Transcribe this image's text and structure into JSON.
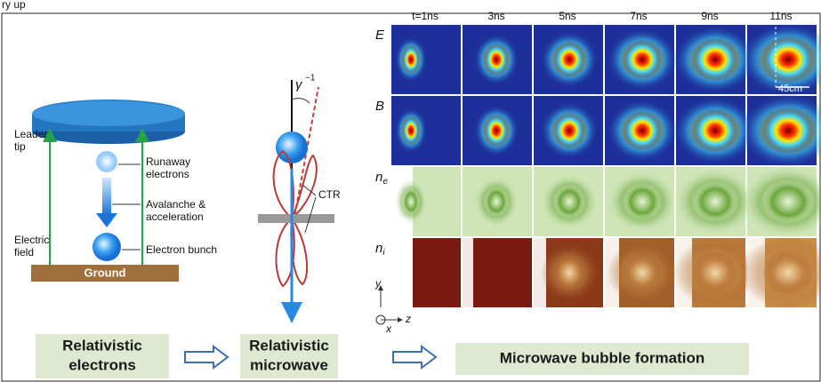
{
  "header_fragment": "ry up",
  "left_panel": {
    "leader_tip": [
      "Leader",
      "tip"
    ],
    "runaway": [
      "Runaway",
      "electrons"
    ],
    "avalanche": [
      "Avalanche &",
      "acceleration"
    ],
    "electric_field": [
      "Electric",
      "field"
    ],
    "electron_bunch": "Electron bunch",
    "ground": "Ground"
  },
  "middle_panel": {
    "gamma": "γ",
    "gamma_exp": "−1",
    "ctr": "CTR"
  },
  "simulation": {
    "columns": [
      "t=1ns",
      "3ns",
      "5ns",
      "7ns",
      "9ns",
      "11ns"
    ],
    "rows": [
      {
        "label": "E"
      },
      {
        "label": "B"
      },
      {
        "label": "n",
        "subscript": "e"
      },
      {
        "label": "n",
        "subscript": "i"
      }
    ],
    "scale": "45cm",
    "axes": {
      "y": "y",
      "z": "z",
      "x": "x"
    }
  },
  "stages": [
    [
      "Relativistic",
      "electrons"
    ],
    [
      "Relativistic",
      "microwave"
    ],
    [
      "Microwave bubble formation"
    ]
  ]
}
